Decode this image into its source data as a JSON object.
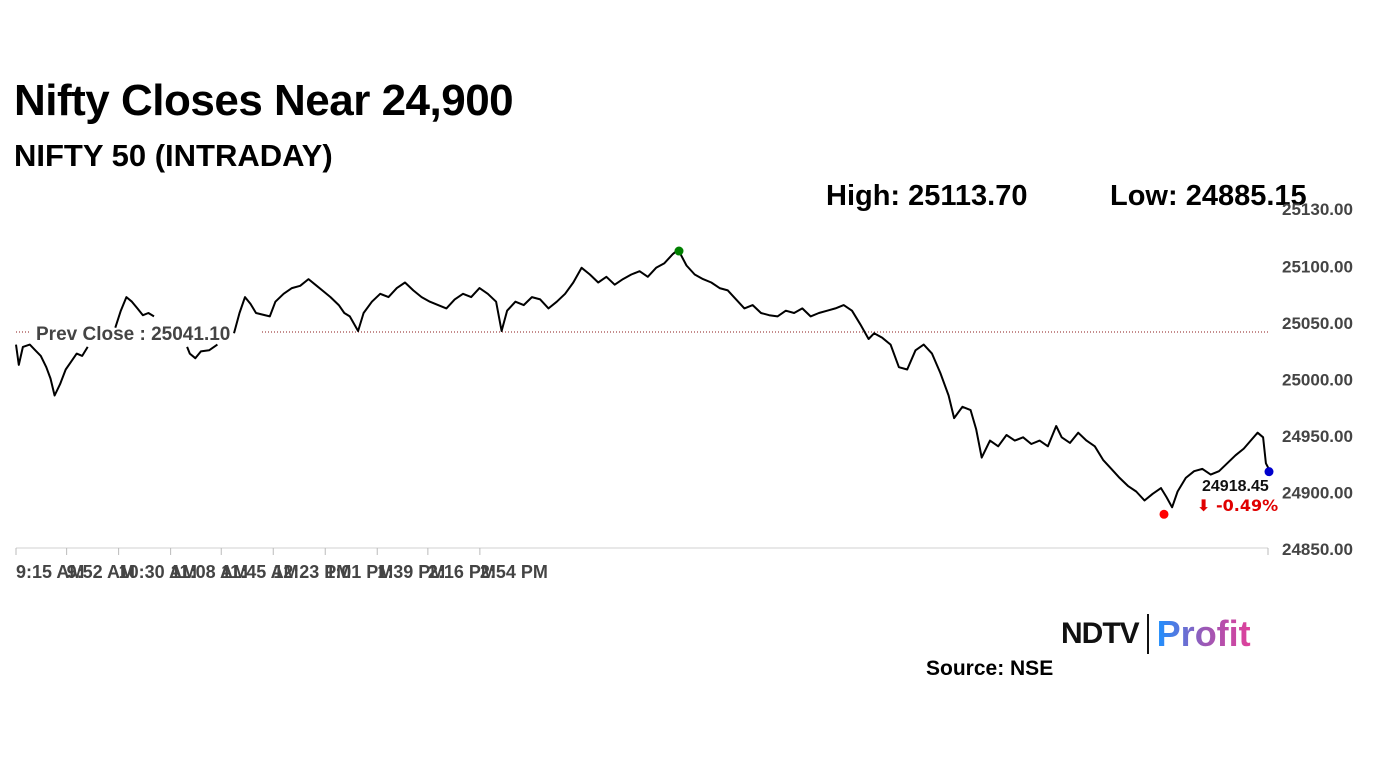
{
  "header": {
    "title": "Nifty Closes Near 24,900",
    "subtitle": "NIFTY 50 (INTRADAY)",
    "high_label": "High: 25113.70",
    "low_label": "Low: 24885.15"
  },
  "footer": {
    "brand_ndtv": "NDTV",
    "brand_profit": "Profit",
    "source": "Source: NSE"
  },
  "colors": {
    "line": "#000000",
    "prev_close_line": "#8b1a1a",
    "high_marker": "#008000",
    "low_marker": "#ff0000",
    "last_marker": "#0000cc",
    "change": "#e00000"
  },
  "chart_data": {
    "type": "line",
    "ylim": [
      24850,
      25130
    ],
    "y_ticks": [
      "25130.00",
      "25100.00",
      "25050.00",
      "25000.00",
      "24950.00",
      "24900.00",
      "24850.00"
    ],
    "x_ticks": [
      "9:15 AM",
      "9:52 AM",
      "10:30 AM",
      "11:08 AM",
      "11:45 AM",
      "12:23 PM",
      "1:01 PM",
      "1:39 PM",
      "2:16 PM",
      "2:54 PM"
    ],
    "prev_close": 25041.1,
    "prev_close_label": "Prev Close : 25041.10",
    "high": 25113.7,
    "low": 24885.15,
    "last_value_label": "24918.45",
    "change_label": "⬇ -0.49%",
    "series": [
      {
        "values": [
          [
            0,
            25030
          ],
          [
            2,
            25012
          ],
          [
            5,
            25028
          ],
          [
            10,
            25030
          ],
          [
            14,
            25025
          ],
          [
            18,
            25020
          ],
          [
            22,
            25010
          ],
          [
            25,
            25000
          ],
          [
            28,
            24985
          ],
          [
            32,
            24995
          ],
          [
            36,
            25008
          ],
          [
            40,
            25015
          ],
          [
            44,
            25022
          ],
          [
            48,
            25020
          ],
          [
            52,
            25028
          ],
          [
            72,
            25045
          ],
          [
            76,
            25060
          ],
          [
            80,
            25072
          ],
          [
            84,
            25068
          ],
          [
            88,
            25062
          ],
          [
            92,
            25056
          ],
          [
            96,
            25058
          ],
          [
            100,
            25055
          ],
          [
            124,
            25028
          ],
          [
            126,
            25022
          ],
          [
            130,
            25018
          ],
          [
            134,
            25024
          ],
          [
            140,
            25025
          ],
          [
            146,
            25030
          ],
          [
            158,
            25040
          ],
          [
            162,
            25058
          ],
          [
            166,
            25072
          ],
          [
            170,
            25066
          ],
          [
            174,
            25058
          ],
          [
            184,
            25055
          ],
          [
            188,
            25068
          ],
          [
            194,
            25075
          ],
          [
            200,
            25080
          ],
          [
            206,
            25082
          ],
          [
            212,
            25088
          ],
          [
            218,
            25082
          ],
          [
            222,
            25078
          ],
          [
            228,
            25072
          ],
          [
            234,
            25065
          ],
          [
            238,
            25058
          ],
          [
            242,
            25055
          ],
          [
            248,
            25042
          ],
          [
            252,
            25058
          ],
          [
            258,
            25068
          ],
          [
            264,
            25075
          ],
          [
            270,
            25072
          ],
          [
            276,
            25080
          ],
          [
            282,
            25085
          ],
          [
            288,
            25078
          ],
          [
            294,
            25072
          ],
          [
            300,
            25068
          ],
          [
            306,
            25065
          ],
          [
            312,
            25062
          ],
          [
            318,
            25070
          ],
          [
            324,
            25075
          ],
          [
            330,
            25072
          ],
          [
            336,
            25080
          ],
          [
            342,
            25075
          ],
          [
            348,
            25068
          ],
          [
            352,
            25042
          ],
          [
            356,
            25060
          ],
          [
            362,
            25068
          ],
          [
            368,
            25065
          ],
          [
            374,
            25072
          ],
          [
            380,
            25070
          ],
          [
            386,
            25062
          ],
          [
            392,
            25068
          ],
          [
            398,
            25075
          ],
          [
            404,
            25085
          ],
          [
            410,
            25098
          ],
          [
            416,
            25092
          ],
          [
            422,
            25085
          ],
          [
            428,
            25090
          ],
          [
            434,
            25083
          ],
          [
            440,
            25088
          ],
          [
            446,
            25092
          ],
          [
            452,
            25095
          ],
          [
            458,
            25090
          ],
          [
            464,
            25098
          ],
          [
            470,
            25102
          ],
          [
            476,
            25110
          ],
          [
            480,
            25114
          ],
          [
            486,
            25100
          ],
          [
            492,
            25092
          ],
          [
            498,
            25088
          ],
          [
            504,
            25085
          ],
          [
            510,
            25080
          ],
          [
            516,
            25078
          ],
          [
            522,
            25070
          ],
          [
            528,
            25062
          ],
          [
            534,
            25065
          ],
          [
            540,
            25058
          ],
          [
            546,
            25056
          ],
          [
            552,
            25055
          ],
          [
            558,
            25060
          ],
          [
            564,
            25058
          ],
          [
            570,
            25062
          ],
          [
            576,
            25055
          ],
          [
            582,
            25058
          ],
          [
            588,
            25060
          ],
          [
            594,
            25062
          ],
          [
            600,
            25065
          ],
          [
            606,
            25060
          ],
          [
            612,
            25048
          ],
          [
            618,
            25035
          ],
          [
            622,
            25040
          ],
          [
            628,
            25036
          ],
          [
            634,
            25030
          ],
          [
            640,
            25010
          ],
          [
            646,
            25008
          ],
          [
            652,
            25025
          ],
          [
            658,
            25030
          ],
          [
            664,
            25022
          ],
          [
            670,
            25005
          ],
          [
            676,
            24985
          ],
          [
            680,
            24965
          ],
          [
            686,
            24975
          ],
          [
            692,
            24972
          ],
          [
            696,
            24955
          ],
          [
            700,
            24930
          ],
          [
            706,
            24945
          ],
          [
            712,
            24940
          ],
          [
            718,
            24950
          ],
          [
            724,
            24945
          ],
          [
            730,
            24948
          ],
          [
            736,
            24942
          ],
          [
            742,
            24945
          ],
          [
            748,
            24940
          ],
          [
            754,
            24958
          ],
          [
            758,
            24948
          ],
          [
            764,
            24943
          ],
          [
            770,
            24952
          ],
          [
            776,
            24945
          ],
          [
            782,
            24940
          ],
          [
            788,
            24928
          ],
          [
            794,
            24920
          ],
          [
            800,
            24912
          ],
          [
            806,
            24905
          ],
          [
            812,
            24900
          ],
          [
            818,
            24892
          ],
          [
            824,
            24898
          ],
          [
            830,
            24903
          ],
          [
            834,
            24895
          ],
          [
            838,
            24886
          ],
          [
            842,
            24900
          ],
          [
            848,
            24912
          ],
          [
            854,
            24918
          ],
          [
            860,
            24920
          ],
          [
            866,
            24915
          ],
          [
            872,
            24918
          ],
          [
            878,
            24925
          ],
          [
            884,
            24932
          ],
          [
            890,
            24938
          ],
          [
            895,
            24945
          ],
          [
            900,
            24952
          ],
          [
            904,
            24948
          ],
          [
            906,
            24925
          ],
          [
            909,
            24918
          ]
        ]
      }
    ]
  }
}
